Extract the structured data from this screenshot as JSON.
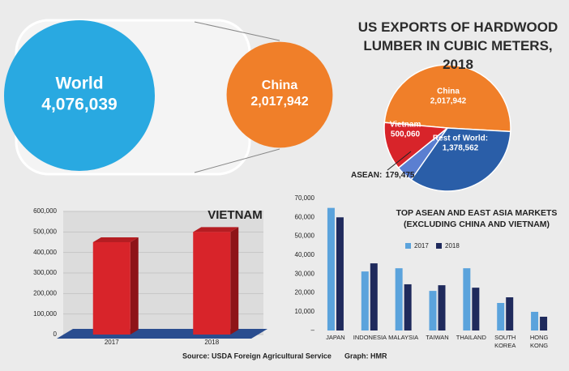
{
  "title": "US EXPORTS OF HARDWOOD LUMBER IN CUBIC METERS, 2018",
  "source": "Source: USDA Foreign Agricultural Service",
  "credit": "Graph: HMR",
  "chart_data": [
    {
      "type": "bubble",
      "categories": [
        "World",
        "China"
      ],
      "values": [
        4076039,
        2017942
      ],
      "value_labels": [
        "4,076,039",
        "2,017,942"
      ],
      "colors": [
        "#29a9e1",
        "#f07f29"
      ]
    },
    {
      "type": "pie",
      "categories": [
        "China",
        "Rest of World:",
        "ASEAN:",
        "Vietnam"
      ],
      "values": [
        2017942,
        1378562,
        179475,
        500060
      ],
      "value_labels": [
        "2,017,942",
        "1,378,562",
        "179,475",
        "500,060"
      ],
      "colors": [
        "#f07f29",
        "#2a5ea8",
        "#5b7fd1",
        "#d8242a"
      ]
    },
    {
      "type": "bar3d",
      "title": "VIETNAM",
      "categories": [
        "2017",
        "2018"
      ],
      "values": [
        450000,
        500060
      ],
      "color": "#d8242a",
      "ylim": [
        0,
        600000
      ],
      "yticks": [
        0,
        {
          "value": 100000,
          "label": "100,000"
        },
        {
          "value": 200000,
          "label": "200,000"
        },
        {
          "value": 300000,
          "label": "300,000"
        },
        {
          "value": 400000,
          "label": "400,000"
        },
        {
          "value": 500000,
          "label": "500,000"
        },
        {
          "value": 600000,
          "label": "600,000"
        }
      ],
      "grid": true
    },
    {
      "type": "grouped_bar",
      "title": "TOP ASEAN AND EAST ASIA MARKETS (EXCLUDING CHINA AND VIETNAM)",
      "categories": [
        "JAPAN",
        "INDONESIA",
        "MALAYSIA",
        "TAIWAN",
        "THAILAND",
        "SOUTH KOREA",
        "HONG KONG"
      ],
      "series": [
        {
          "name": "2017",
          "color": "#5ba3dc",
          "values": [
            65000,
            31300,
            33000,
            21000,
            33000,
            14600,
            9900
          ]
        },
        {
          "name": "2018",
          "color": "#1f2a5c",
          "values": [
            60000,
            35600,
            24500,
            24000,
            22700,
            17600,
            7300
          ]
        }
      ],
      "ylim": [
        0,
        70000
      ],
      "yticks": [
        {
          "value": 0,
          "label": "–"
        },
        {
          "value": 10000,
          "label": "10,000"
        },
        {
          "value": 20000,
          "label": "20,000"
        },
        {
          "value": 30000,
          "label": "30,000"
        },
        {
          "value": 40000,
          "label": "40,000"
        },
        {
          "value": 50000,
          "label": "50,000"
        },
        {
          "value": 60000,
          "label": "60,000"
        },
        {
          "value": 70000,
          "label": "70,000"
        }
      ],
      "legend": "top-right"
    }
  ]
}
